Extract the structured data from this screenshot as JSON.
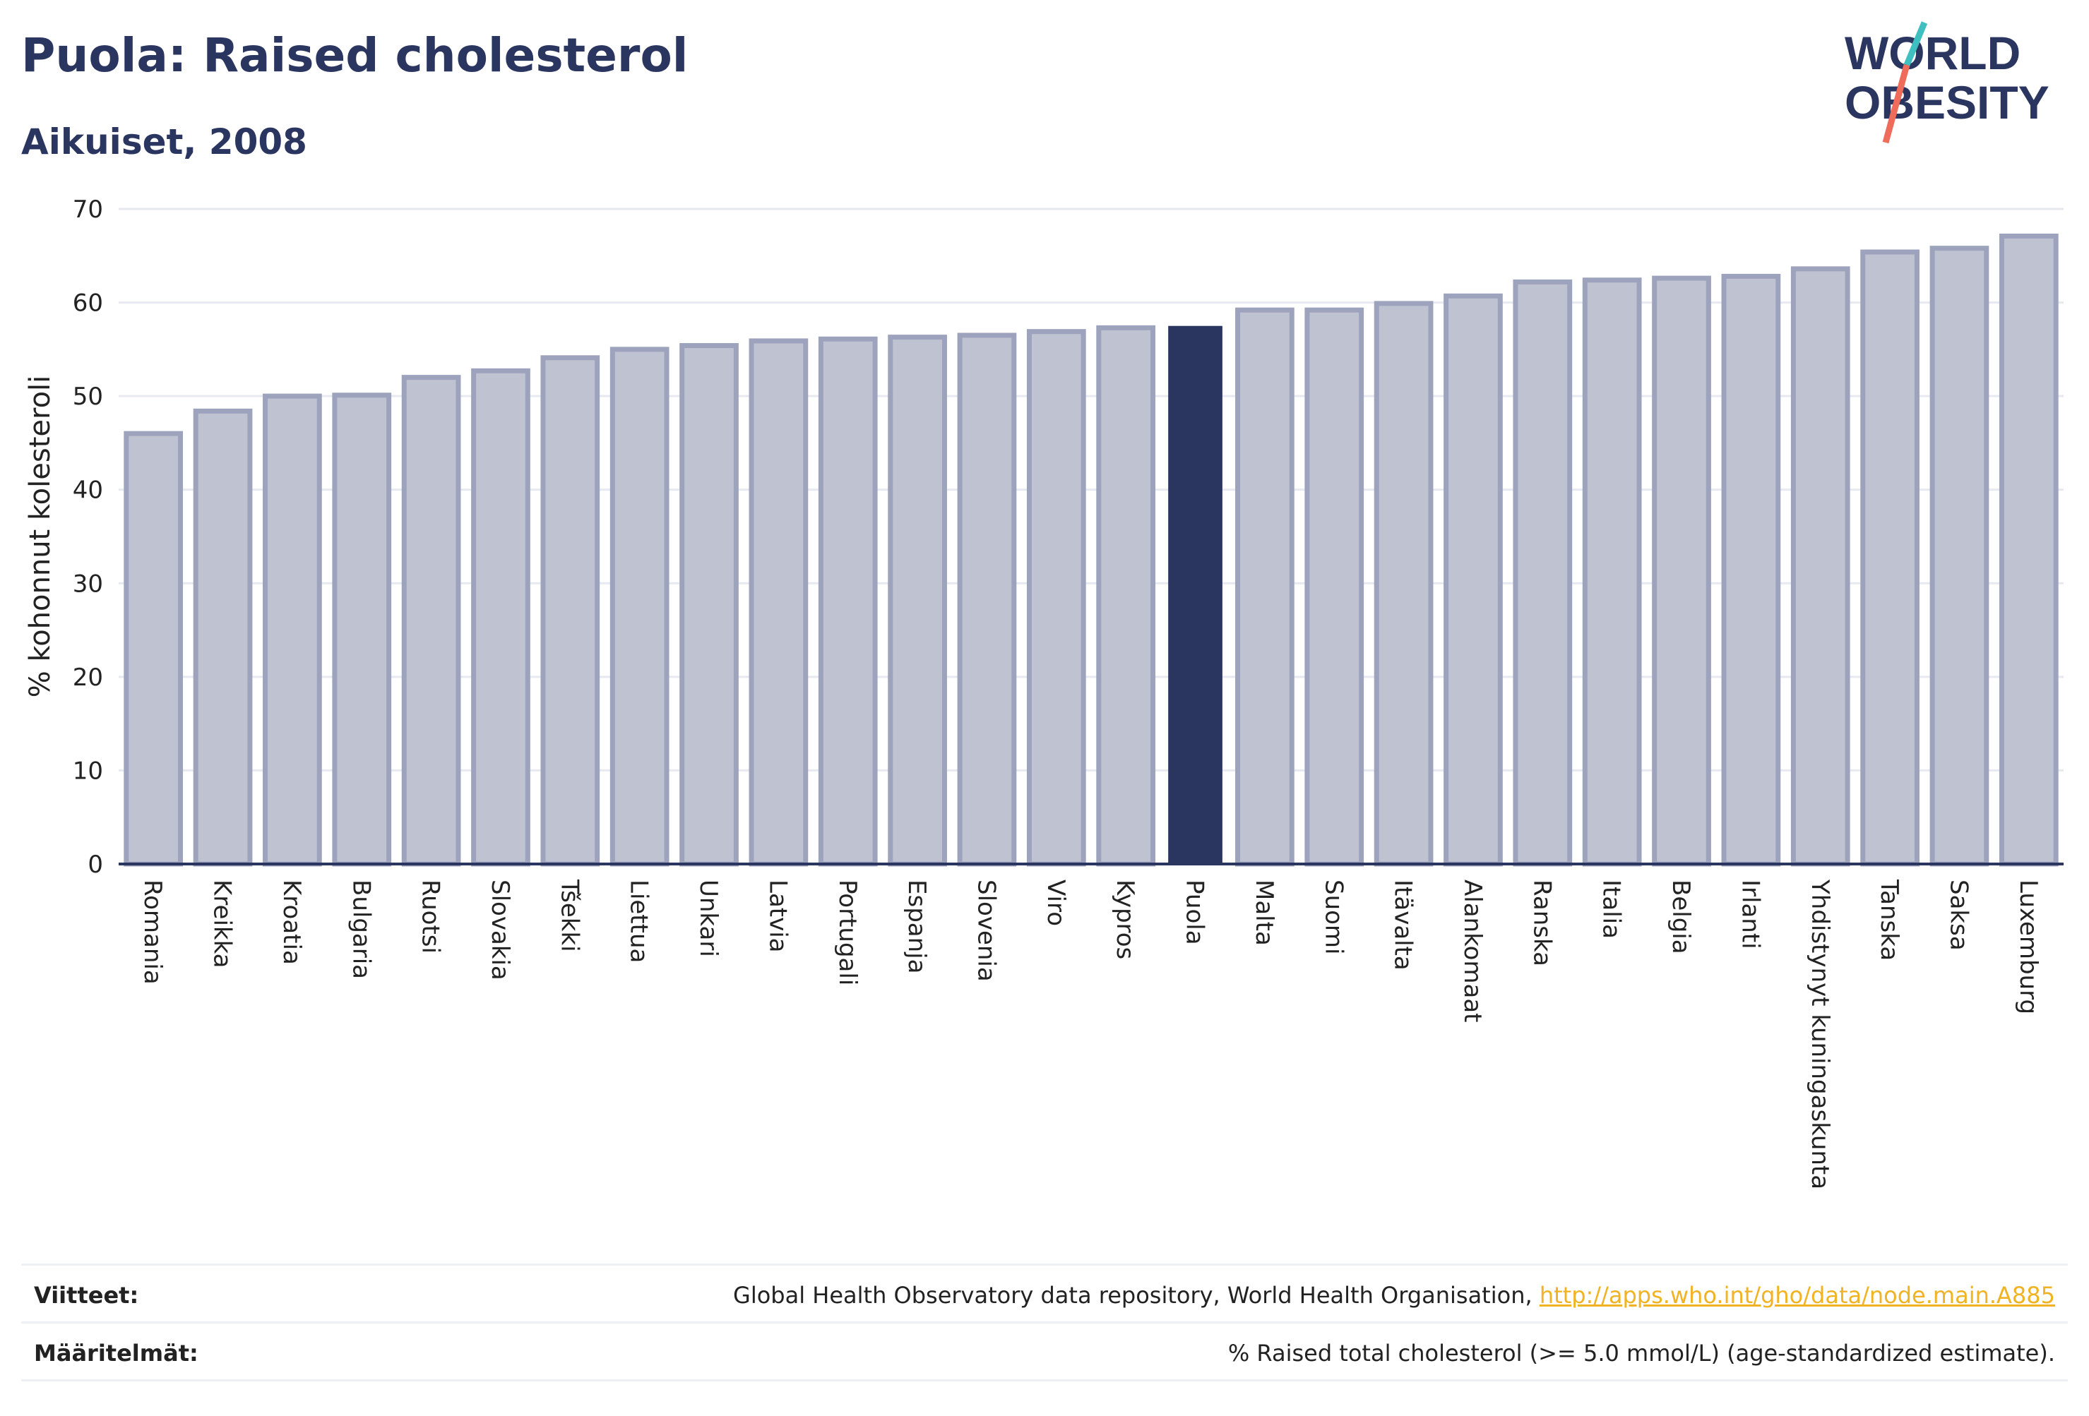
{
  "header": {
    "title": "Puola: Raised cholesterol",
    "subtitle": "Aikuiset, 2008"
  },
  "logo": {
    "line1": "WORLD",
    "line2": "OBESITY",
    "colors": {
      "text": "#2a3560",
      "slash_top": "#3fbfbf",
      "slash_bottom": "#ef6b5a"
    }
  },
  "colors": {
    "bar": "#bfc2d0",
    "bar_stroke": "#9ea3bd",
    "highlight": "#2a3560",
    "grid": "#e7e9f0",
    "axis": "#2a3560",
    "text": "#222222"
  },
  "chart_data": {
    "type": "bar",
    "ylabel": "% kohonnut kolesteroli",
    "ylim": [
      0,
      70
    ],
    "yticks": [
      0,
      10,
      20,
      30,
      40,
      50,
      60,
      70
    ],
    "grid": true,
    "highlight": "Puola",
    "categories": [
      "Romania",
      "Kreikka",
      "Kroatia",
      "Bulgaria",
      "Ruotsi",
      "Slovakia",
      "Tšekki",
      "Liettua",
      "Unkari",
      "Latvia",
      "Portugali",
      "Espanja",
      "Slovenia",
      "Viro",
      "Kypros",
      "Puola",
      "Malta",
      "Suomi",
      "Itävalta",
      "Alankomaat",
      "Ranska",
      "Italia",
      "Belgia",
      "Irlanti",
      "Yhdistynyt kuningaskunta",
      "Tanska",
      "Saksa",
      "Luxemburg"
    ],
    "values": [
      46.0,
      48.4,
      50.0,
      50.1,
      52.0,
      52.7,
      54.1,
      55.0,
      55.4,
      55.9,
      56.1,
      56.3,
      56.5,
      56.9,
      57.3,
      57.5,
      59.2,
      59.2,
      59.9,
      60.7,
      62.2,
      62.4,
      62.6,
      62.8,
      63.6,
      65.4,
      65.8,
      67.1
    ]
  },
  "footer": {
    "references_label": "Viitteet:",
    "references_text": "Global Health Observatory data repository, World Health Organisation, ",
    "references_link": "http://apps.who.int/gho/data/node.main.A885",
    "definitions_label": "Määritelmät:",
    "definitions_text": "% Raised total cholesterol (>= 5.0 mmol/L) (age-standardized estimate)."
  }
}
